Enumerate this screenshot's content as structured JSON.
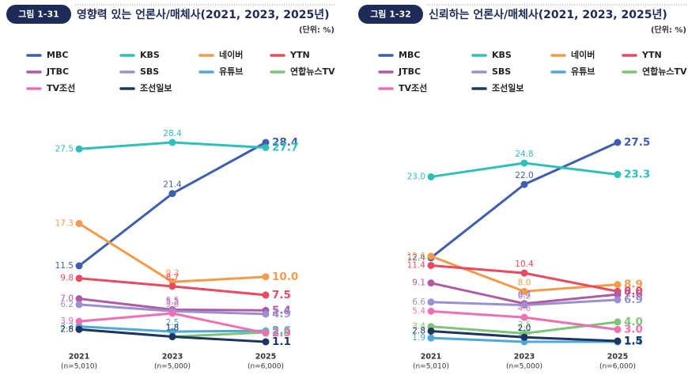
{
  "chart_data": [
    {
      "type": "line",
      "badge": "그림 1-31",
      "title": "영향력 있는 언론사/매체사(2021, 2023, 2025년)",
      "unit": "(단위: %)",
      "categories": [
        "2021",
        "2023",
        "2025"
      ],
      "sample_sizes": [
        "(n=5,010)",
        "(n=5,000)",
        "(n=6,000)"
      ],
      "series": [
        {
          "name": "MBC",
          "color": "#3f5fae",
          "values": [
            11.5,
            21.4,
            28.4
          ],
          "value_labels": [
            "11.5",
            "21.4",
            "28.4"
          ]
        },
        {
          "name": "KBS",
          "color": "#2fbfb9",
          "values": [
            27.5,
            28.4,
            27.7
          ],
          "value_labels": [
            "27.5",
            "28.4",
            "27.7"
          ]
        },
        {
          "name": "네이버",
          "color": "#f39a4b",
          "values": [
            17.3,
            9.3,
            10
          ],
          "value_labels": [
            "17.3",
            "9.3",
            "10.0"
          ]
        },
        {
          "name": "YTN",
          "color": "#e84a5f",
          "values": [
            9.8,
            8.7,
            7.5
          ],
          "value_labels": [
            "9.8",
            "8.7",
            "7.5"
          ]
        },
        {
          "name": "JTBC",
          "color": "#b05aa5",
          "values": [
            7,
            5.5,
            5.4
          ],
          "value_labels": [
            "7.0",
            "5.5",
            "5.4"
          ]
        },
        {
          "name": "SBS",
          "color": "#9b90cf",
          "values": [
            6.2,
            5.3,
            4.9
          ],
          "value_labels": [
            "6.2",
            "5.3",
            "4.9"
          ]
        },
        {
          "name": "유튜브",
          "color": "#4ea7dd",
          "values": [
            3.2,
            2.5,
            2.6
          ],
          "value_labels": [
            "3.2",
            "2.5",
            "2.6"
          ]
        },
        {
          "name": "연합뉴스TV",
          "color": "#7cc576",
          "values": [
            2.8,
            1.8,
            2.4
          ],
          "value_labels": [
            "2.8",
            "1.8",
            "2.4"
          ]
        },
        {
          "name": "TV조선",
          "color": "#ef70b1",
          "values": [
            3.9,
            5,
            2.3
          ],
          "value_labels": [
            "3.9",
            "5.0",
            "2.3"
          ]
        },
        {
          "name": "조선일보",
          "color": "#1e3561",
          "values": [
            2.8,
            1.8,
            1.1
          ],
          "value_labels": [
            "2.8",
            "1.8",
            "1.1"
          ]
        }
      ]
    },
    {
      "type": "line",
      "badge": "그림 1-32",
      "title": "신뢰하는 언론사/매체사(2021, 2023, 2025년)",
      "unit": "(단위: %)",
      "categories": [
        "2021",
        "2023",
        "2025"
      ],
      "sample_sizes": [
        "(n=5,010)",
        "(n=5,000)",
        "(n=6,000)"
      ],
      "series": [
        {
          "name": "MBC",
          "color": "#3f5fae",
          "values": [
            12.4,
            22,
            27.5
          ],
          "value_labels": [
            "12.4",
            "22.0",
            "27.5"
          ]
        },
        {
          "name": "KBS",
          "color": "#2fbfb9",
          "values": [
            23,
            24.8,
            23.3
          ],
          "value_labels": [
            "23.0",
            "24.8",
            "23.3"
          ]
        },
        {
          "name": "네이버",
          "color": "#f39a4b",
          "values": [
            12.6,
            8,
            8.9
          ],
          "value_labels": [
            "12.6",
            "8.0",
            "8.9"
          ]
        },
        {
          "name": "YTN",
          "color": "#e84a5f",
          "values": [
            11.4,
            10.4,
            8
          ],
          "value_labels": [
            "11.4",
            "10.4",
            "8.0"
          ]
        },
        {
          "name": "JTBC",
          "color": "#b05aa5",
          "values": [
            9.1,
            6.4,
            7.6
          ],
          "value_labels": [
            "9.1",
            "6.4",
            "7.6"
          ]
        },
        {
          "name": "SBS",
          "color": "#9b90cf",
          "values": [
            6.6,
            6.2,
            6.9
          ],
          "value_labels": [
            "6.6",
            "6.2",
            "6.9"
          ]
        },
        {
          "name": "유튜브",
          "color": "#4ea7dd",
          "values": [
            1.9,
            1.4,
            1.4
          ],
          "value_labels": [
            "1.9",
            "1.4",
            "1.4"
          ]
        },
        {
          "name": "연합뉴스TV",
          "color": "#7cc576",
          "values": [
            3.4,
            2.5,
            4
          ],
          "value_labels": [
            "3.4",
            "2.5",
            "4.0"
          ]
        },
        {
          "name": "TV조선",
          "color": "#ef70b1",
          "values": [
            5.4,
            4.6,
            3
          ],
          "value_labels": [
            "5.4",
            "4.6",
            "3.0"
          ]
        },
        {
          "name": "조선일보",
          "color": "#1e3561",
          "values": [
            2.8,
            2,
            1.5
          ],
          "value_labels": [
            "2.8",
            "2.0",
            "1.5"
          ]
        }
      ]
    }
  ]
}
